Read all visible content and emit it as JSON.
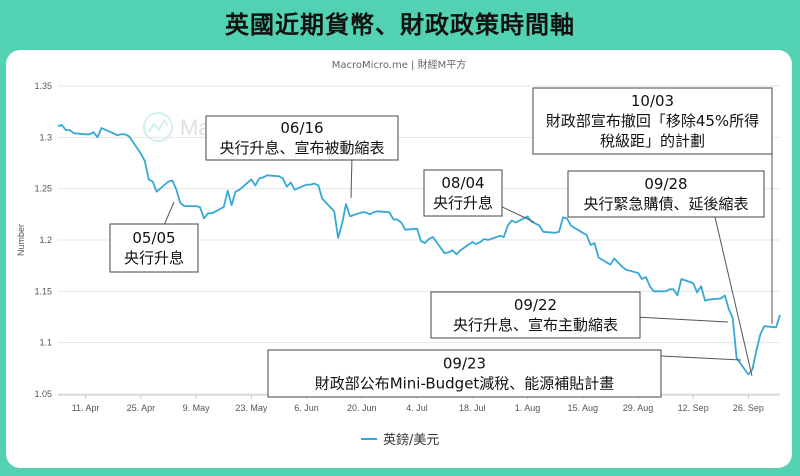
{
  "page_title": "英國近期貨幣、財政政策時間軸",
  "source": "MacroMicro.me | 財經M平方",
  "watermark": "MacroMicro",
  "colors": {
    "background": "#52d2b2",
    "line": "#35a8d6",
    "panel": "#ffffff"
  },
  "chart_data": {
    "type": "line",
    "ylabel": "Number",
    "ylim": [
      1.05,
      1.35
    ],
    "yticks": [
      "1.35",
      "1.3",
      "1.25",
      "1.2",
      "1.15",
      "1.1",
      "1.05"
    ],
    "xticks": [
      "11. Apr",
      "25. Apr",
      "9. May",
      "23. May",
      "6. Jun",
      "20. Jun",
      "4. Jul",
      "18. Jul",
      "1. Aug",
      "15. Aug",
      "29. Aug",
      "12. Sep",
      "26. Sep"
    ],
    "legend": "英鎊/美元",
    "series": [
      {
        "name": "英鎊/美元",
        "x": [
          "2022-04-04",
          "2022-04-05",
          "2022-04-06",
          "2022-04-07",
          "2022-04-08",
          "2022-04-11",
          "2022-04-12",
          "2022-04-13",
          "2022-04-14",
          "2022-04-15",
          "2022-04-18",
          "2022-04-19",
          "2022-04-20",
          "2022-04-21",
          "2022-04-22",
          "2022-04-25",
          "2022-04-26",
          "2022-04-27",
          "2022-04-28",
          "2022-04-29",
          "2022-05-02",
          "2022-05-03",
          "2022-05-04",
          "2022-05-05",
          "2022-05-06",
          "2022-05-09",
          "2022-05-10",
          "2022-05-11",
          "2022-05-12",
          "2022-05-13",
          "2022-05-16",
          "2022-05-17",
          "2022-05-18",
          "2022-05-19",
          "2022-05-20",
          "2022-05-23",
          "2022-05-24",
          "2022-05-25",
          "2022-05-26",
          "2022-05-27",
          "2022-05-30",
          "2022-05-31",
          "2022-06-01",
          "2022-06-02",
          "2022-06-03",
          "2022-06-06",
          "2022-06-07",
          "2022-06-08",
          "2022-06-09",
          "2022-06-10",
          "2022-06-13",
          "2022-06-14",
          "2022-06-15",
          "2022-06-16",
          "2022-06-17",
          "2022-06-20",
          "2022-06-21",
          "2022-06-22",
          "2022-06-23",
          "2022-06-24",
          "2022-06-27",
          "2022-06-28",
          "2022-06-29",
          "2022-06-30",
          "2022-07-01",
          "2022-07-04",
          "2022-07-05",
          "2022-07-06",
          "2022-07-07",
          "2022-07-08",
          "2022-07-11",
          "2022-07-12",
          "2022-07-13",
          "2022-07-14",
          "2022-07-15",
          "2022-07-18",
          "2022-07-19",
          "2022-07-20",
          "2022-07-21",
          "2022-07-22",
          "2022-07-25",
          "2022-07-26",
          "2022-07-27",
          "2022-07-28",
          "2022-07-29",
          "2022-08-01",
          "2022-08-02",
          "2022-08-03",
          "2022-08-04",
          "2022-08-05",
          "2022-08-08",
          "2022-08-09",
          "2022-08-10",
          "2022-08-11",
          "2022-08-12",
          "2022-08-15",
          "2022-08-16",
          "2022-08-17",
          "2022-08-18",
          "2022-08-19",
          "2022-08-22",
          "2022-08-23",
          "2022-08-24",
          "2022-08-25",
          "2022-08-26",
          "2022-08-29",
          "2022-08-30",
          "2022-08-31",
          "2022-09-01",
          "2022-09-02",
          "2022-09-05",
          "2022-09-06",
          "2022-09-07",
          "2022-09-08",
          "2022-09-09",
          "2022-09-12",
          "2022-09-13",
          "2022-09-14",
          "2022-09-15",
          "2022-09-16",
          "2022-09-19",
          "2022-09-20",
          "2022-09-21",
          "2022-09-22",
          "2022-09-23",
          "2022-09-26",
          "2022-09-27",
          "2022-09-28",
          "2022-09-29",
          "2022-09-30",
          "2022-10-03",
          "2022-10-04"
        ],
        "values": [
          1.311,
          1.312,
          1.307,
          1.307,
          1.304,
          1.303,
          1.303,
          1.305,
          1.3,
          1.309,
          1.304,
          1.302,
          1.303,
          1.303,
          1.301,
          1.284,
          1.277,
          1.259,
          1.257,
          1.247,
          1.257,
          1.258,
          1.249,
          1.236,
          1.233,
          1.233,
          1.232,
          1.221,
          1.226,
          1.226,
          1.232,
          1.248,
          1.234,
          1.247,
          1.249,
          1.259,
          1.253,
          1.26,
          1.261,
          1.263,
          1.262,
          1.26,
          1.252,
          1.256,
          1.249,
          1.254,
          1.254,
          1.255,
          1.253,
          1.24,
          1.228,
          1.202,
          1.216,
          1.235,
          1.223,
          1.227,
          1.227,
          1.225,
          1.227,
          1.228,
          1.227,
          1.22,
          1.22,
          1.217,
          1.21,
          1.211,
          1.199,
          1.197,
          1.201,
          1.203,
          1.187,
          1.188,
          1.19,
          1.186,
          1.19,
          1.198,
          1.196,
          1.198,
          1.201,
          1.2,
          1.204,
          1.203,
          1.214,
          1.219,
          1.217,
          1.223,
          1.218,
          1.216,
          1.214,
          1.208,
          1.207,
          1.208,
          1.222,
          1.221,
          1.214,
          1.207,
          1.205,
          1.195,
          1.197,
          1.183,
          1.176,
          1.182,
          1.178,
          1.174,
          1.171,
          1.168,
          1.162,
          1.164,
          1.155,
          1.15,
          1.15,
          1.152,
          1.152,
          1.146,
          1.162,
          1.158,
          1.149,
          1.155,
          1.141,
          1.142,
          1.143,
          1.146,
          1.133,
          1.124,
          1.085,
          1.069,
          1.074,
          1.092,
          1.108,
          1.116,
          1.115,
          1.127
        ]
      }
    ],
    "annotations": [
      {
        "id": "ann-0505",
        "lines": [
          "05/05",
          "央行升息"
        ],
        "date": "2022-05-05"
      },
      {
        "id": "ann-0616",
        "lines": [
          "06/16",
          "央行升息、宣布被動縮表"
        ],
        "date": "2022-06-16"
      },
      {
        "id": "ann-0804",
        "lines": [
          "08/04",
          "央行升息"
        ],
        "date": "2022-08-04"
      },
      {
        "id": "ann-1003",
        "lines": [
          "10/03",
          "財政部宣布撤回「移除45%所得",
          "稅級距」的計劃"
        ],
        "date": "2022-10-03"
      },
      {
        "id": "ann-0928",
        "lines": [
          "09/28",
          "央行緊急購債、延後縮表"
        ],
        "date": "2022-09-28"
      },
      {
        "id": "ann-0922",
        "lines": [
          "09/22",
          "央行升息、宣布主動縮表"
        ],
        "date": "2022-09-22"
      },
      {
        "id": "ann-0923",
        "lines": [
          "09/23",
          "財政部公布Mini-Budget減稅、能源補貼計畫"
        ],
        "date": "2022-09-23"
      }
    ]
  }
}
